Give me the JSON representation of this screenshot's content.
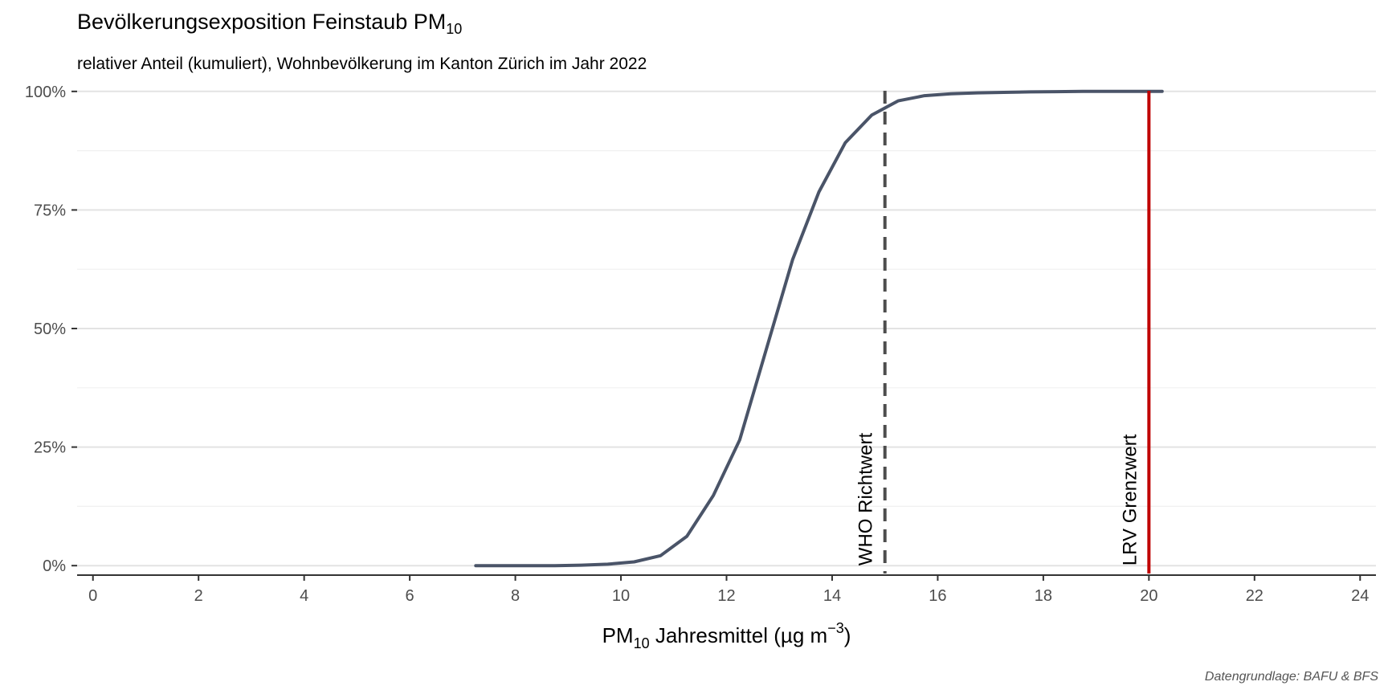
{
  "chart_data": {
    "type": "line",
    "title": "Bevölkerungsexposition Feinstaub PM",
    "title_sub": "10",
    "subtitle": "relativer Anteil (kumuliert), Wohnbevölkerung im Kanton Zürich im Jahr 2022",
    "caption": "Datengrundlage: BAFU & BFS",
    "xlabel": {
      "pre": "PM",
      "sub": "10",
      "mid": " Jahresmittel (µg m",
      "sup": "−3",
      "post": ")"
    },
    "ylabel": "",
    "xlim": [
      -0.3,
      24.3
    ],
    "ylim": [
      -2,
      102
    ],
    "x_ticks": [
      0,
      2,
      4,
      6,
      8,
      10,
      12,
      14,
      16,
      18,
      20,
      22,
      24
    ],
    "y_ticks": [
      0,
      25,
      50,
      75,
      100
    ],
    "y_tick_labels": [
      "0%",
      "25%",
      "50%",
      "75%",
      "100%"
    ],
    "grid": true,
    "series": [
      {
        "color": "#4a5468",
        "x": [
          7.25,
          7.75,
          8.25,
          8.75,
          9.25,
          9.75,
          10.25,
          10.75,
          11.25,
          11.75,
          12.25,
          12.75,
          13.25,
          13.75,
          14.25,
          14.75,
          15.25,
          15.75,
          16.25,
          16.75,
          17.25,
          17.75,
          18.25,
          18.75,
          19.25,
          19.75,
          20.25
        ],
        "y": [
          0.0,
          0.0,
          0.0,
          0.0,
          0.1,
          0.3,
          0.8,
          2.1,
          6.2,
          14.8,
          26.5,
          45.5,
          64.5,
          78.8,
          89.2,
          95.0,
          98.0,
          99.1,
          99.5,
          99.7,
          99.8,
          99.9,
          99.95,
          100.0,
          100.0,
          100.0,
          100.0
        ]
      }
    ],
    "reference_lines": [
      {
        "x": 15,
        "label": "WHO Richtwert",
        "color": "#4d4d4d",
        "style": "dashed"
      },
      {
        "x": 20,
        "label": "LRV Grenzwert",
        "color": "#c00000",
        "style": "solid"
      }
    ]
  }
}
